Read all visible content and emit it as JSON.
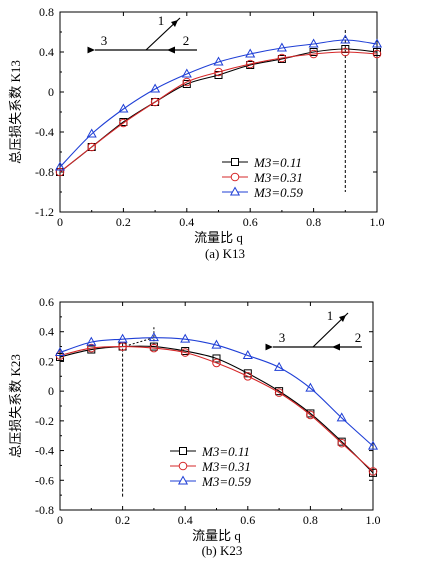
{
  "chart_data": [
    {
      "type": "line",
      "caption": "(a)  K13",
      "xlabel": "流量比 q",
      "ylabel": "总压损失系数 K13",
      "xlim": [
        0,
        1.0
      ],
      "ylim": [
        -1.2,
        0.8
      ],
      "xticks": [
        "0",
        "0.2",
        "0.4",
        "0.6",
        "0.8",
        "1.0"
      ],
      "yticks": [
        "-1.2",
        "-0.8",
        "-0.4",
        "0",
        "0.4",
        "0.8"
      ],
      "x": [
        0,
        0.1,
        0.2,
        0.3,
        0.4,
        0.5,
        0.6,
        0.7,
        0.8,
        0.9,
        1.0
      ],
      "series": [
        {
          "name": "M3=0.11",
          "color": "#000000",
          "marker": "square",
          "values": [
            -0.8,
            -0.55,
            -0.3,
            -0.1,
            0.08,
            0.17,
            0.27,
            0.33,
            0.4,
            0.43,
            0.4
          ]
        },
        {
          "name": "M3=0.31",
          "color": "#d62728",
          "marker": "circle",
          "values": [
            -0.8,
            -0.55,
            -0.31,
            -0.1,
            0.1,
            0.2,
            0.28,
            0.34,
            0.38,
            0.4,
            0.38
          ]
        },
        {
          "name": "M3=0.59",
          "color": "#1f3fd6",
          "marker": "triangle",
          "values": [
            -0.75,
            -0.42,
            -0.17,
            0.03,
            0.18,
            0.3,
            0.38,
            0.44,
            0.48,
            0.52,
            0.48
          ]
        }
      ],
      "reference_line_x": 0.9,
      "inset_labels": [
        "1",
        "2",
        "3"
      ],
      "legend": "center-right"
    },
    {
      "type": "line",
      "caption": "(b)  K23",
      "xlabel": "流量比 q",
      "ylabel": "总压损失系数 K23",
      "xlim": [
        0,
        1.0
      ],
      "ylim": [
        -0.8,
        0.6
      ],
      "xticks": [
        "0",
        "0.2",
        "0.4",
        "0.6",
        "0.8",
        "1.0"
      ],
      "yticks": [
        "-0.8",
        "-0.6",
        "-0.4",
        "-0.2",
        "0",
        "0.2",
        "0.4",
        "0.6"
      ],
      "x": [
        0,
        0.1,
        0.2,
        0.3,
        0.4,
        0.5,
        0.6,
        0.7,
        0.8,
        0.9,
        1.0
      ],
      "series": [
        {
          "name": "M3=0.11",
          "color": "#000000",
          "marker": "square",
          "values": [
            0.23,
            0.28,
            0.3,
            0.3,
            0.27,
            0.22,
            0.12,
            0.0,
            -0.15,
            -0.34,
            -0.55
          ]
        },
        {
          "name": "M3=0.31",
          "color": "#d62728",
          "marker": "circle",
          "values": [
            0.24,
            0.29,
            0.3,
            0.29,
            0.26,
            0.19,
            0.1,
            -0.01,
            -0.16,
            -0.35,
            -0.54
          ]
        },
        {
          "name": "M3=0.59",
          "color": "#1f3fd6",
          "marker": "triangle",
          "values": [
            0.26,
            0.33,
            0.35,
            0.36,
            0.35,
            0.31,
            0.24,
            0.16,
            0.02,
            -0.18,
            -0.37
          ]
        }
      ],
      "reference_line_x": 0.2,
      "reference_line_x2": 0.3,
      "inset_labels": [
        "1",
        "2",
        "3"
      ],
      "legend": "bottom-center"
    }
  ]
}
